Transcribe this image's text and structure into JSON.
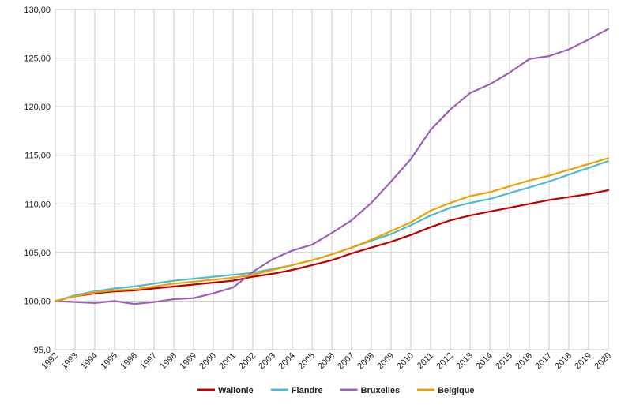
{
  "chart_data": {
    "type": "line",
    "title": "",
    "xlabel": "",
    "ylabel": "",
    "ylim": [
      95,
      130
    ],
    "yticks": [
      "95,0",
      "100,00",
      "105,00",
      "110,00",
      "115,00",
      "120,00",
      "125,00",
      "130,00"
    ],
    "ytick_values": [
      95,
      100,
      105,
      110,
      115,
      120,
      125,
      130
    ],
    "grid": true,
    "legend_position": "bottom",
    "x": [
      "1992",
      "1993",
      "1994",
      "1995",
      "1996",
      "1997",
      "1998",
      "1999",
      "2000",
      "2001",
      "2002",
      "2003",
      "2004",
      "2005",
      "2006",
      "2007",
      "2008",
      "2009",
      "2010",
      "2011",
      "2012",
      "2013",
      "2014",
      "2015",
      "2016",
      "2017",
      "2018",
      "2019",
      "2020"
    ],
    "series": [
      {
        "name": "Wallonie",
        "color": "#c00000",
        "values": [
          100.0,
          100.5,
          100.8,
          101.0,
          101.1,
          101.3,
          101.5,
          101.7,
          101.9,
          102.1,
          102.5,
          102.8,
          103.2,
          103.7,
          104.2,
          104.9,
          105.5,
          106.1,
          106.8,
          107.6,
          108.3,
          108.8,
          109.2,
          109.6,
          110.0,
          110.4,
          110.7,
          111.0,
          111.4
        ]
      },
      {
        "name": "Flandre",
        "color": "#4bbcd0",
        "values": [
          100.0,
          100.6,
          101.0,
          101.3,
          101.5,
          101.8,
          102.1,
          102.3,
          102.5,
          102.7,
          102.9,
          103.3,
          103.7,
          104.2,
          104.8,
          105.5,
          106.2,
          106.9,
          107.8,
          108.8,
          109.6,
          110.1,
          110.5,
          111.1,
          111.7,
          112.3,
          113.0,
          113.7,
          114.4
        ]
      },
      {
        "name": "Bruxelles",
        "color": "#9e5fb8",
        "values": [
          100.0,
          99.9,
          99.8,
          100.0,
          99.7,
          99.9,
          100.2,
          100.3,
          100.8,
          101.4,
          103.0,
          104.3,
          105.2,
          105.8,
          107.0,
          108.3,
          110.1,
          112.3,
          114.6,
          117.6,
          119.7,
          121.4,
          122.3,
          123.5,
          124.9,
          125.2,
          125.9,
          126.9,
          128.0
        ]
      },
      {
        "name": "Belgique",
        "color": "#f0a000",
        "values": [
          100.0,
          100.5,
          100.9,
          101.1,
          101.2,
          101.5,
          101.8,
          102.0,
          102.2,
          102.4,
          102.7,
          103.2,
          103.7,
          104.2,
          104.8,
          105.5,
          106.3,
          107.2,
          108.1,
          109.3,
          110.1,
          110.8,
          111.2,
          111.8,
          112.4,
          112.9,
          113.5,
          114.1,
          114.7
        ]
      }
    ]
  }
}
